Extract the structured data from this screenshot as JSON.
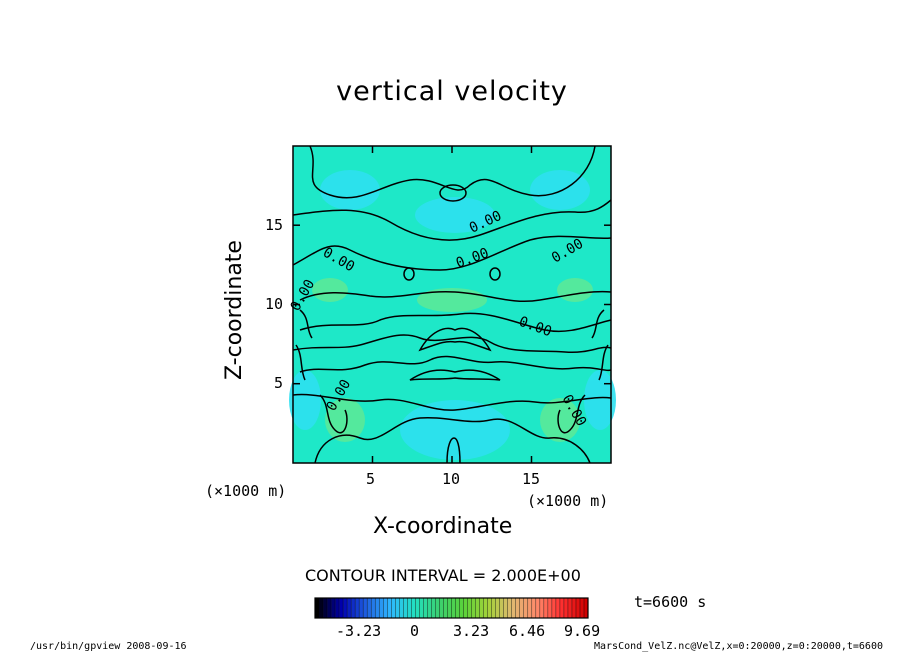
{
  "chart_data": {
    "type": "heatmap",
    "title": "vertical velocity",
    "xlabel": "X-coordinate",
    "ylabel": "Z-coordinate",
    "x_unit": "(×1000 m)",
    "y_unit": "(×1000 m)",
    "xlim": [
      0,
      20
    ],
    "ylim": [
      0,
      20
    ],
    "x_ticks": [
      "5",
      "10",
      "15"
    ],
    "y_ticks": [
      "5",
      "10",
      "15"
    ],
    "contour_labels": [
      "0.00",
      "0.00",
      "0.00",
      "0.00",
      "0.00",
      "0.00",
      "0.00",
      "0.00"
    ],
    "contour_interval": "CONTOUR INTERVAL = 2.000E+00",
    "colorbar": {
      "ticks": [
        "-3.23",
        "0",
        "3.23",
        "6.46",
        "9.69"
      ],
      "colors": [
        "#000000",
        "#0000b0",
        "#1f5fe0",
        "#2fb8ff",
        "#22e0c0",
        "#3bd070",
        "#5ad23a",
        "#a4d23a",
        "#e0b870",
        "#ff8a6a",
        "#ff3030",
        "#d00000"
      ]
    },
    "field_colors": [
      "#1ee8c8",
      "#2ee0f0",
      "#62e892"
    ]
  },
  "time": "t=6600 s",
  "footer": {
    "left": "/usr/bin/gpview  2008-09-16",
    "right": "MarsCond_VelZ.nc@VelZ,x=0:20000,z=0:20000,t=6600"
  }
}
